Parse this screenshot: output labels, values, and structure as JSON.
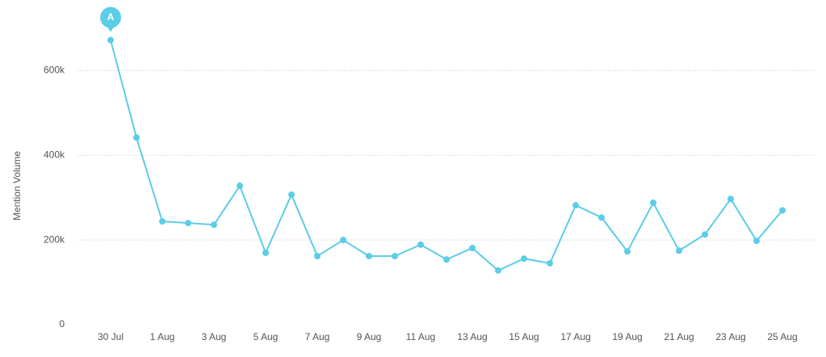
{
  "chart_data": {
    "type": "line",
    "y_label": "Mention Volume",
    "annotation": "A",
    "categories": [
      "30 Jul",
      null,
      "1 Aug",
      null,
      "3 Aug",
      null,
      "5 Aug",
      null,
      "7 Aug",
      null,
      "9 Aug",
      null,
      "11 Aug",
      null,
      "13 Aug",
      null,
      "15 Aug",
      null,
      "17 Aug",
      null,
      "19 Aug",
      null,
      "21 Aug",
      null,
      "23 Aug",
      null,
      "25 Aug"
    ],
    "series": [
      {
        "name": "Mention Volume",
        "color": "#5bcde6",
        "values": [
          672000,
          442000,
          244000,
          240000,
          236000,
          328000,
          170000,
          307000,
          162000,
          200000,
          162000,
          162000,
          189000,
          154000,
          181000,
          128000,
          156000,
          145000,
          282000,
          253000,
          173000,
          288000,
          175000,
          213000,
          297000,
          198000,
          270000
        ]
      }
    ],
    "ylim": [
      0,
      700000
    ],
    "yticks": [
      0,
      {
        "value": 200000,
        "label": "200k"
      },
      {
        "value": 400000,
        "label": "400k"
      },
      {
        "value": 600000,
        "label": "600k"
      }
    ],
    "grid": true
  }
}
